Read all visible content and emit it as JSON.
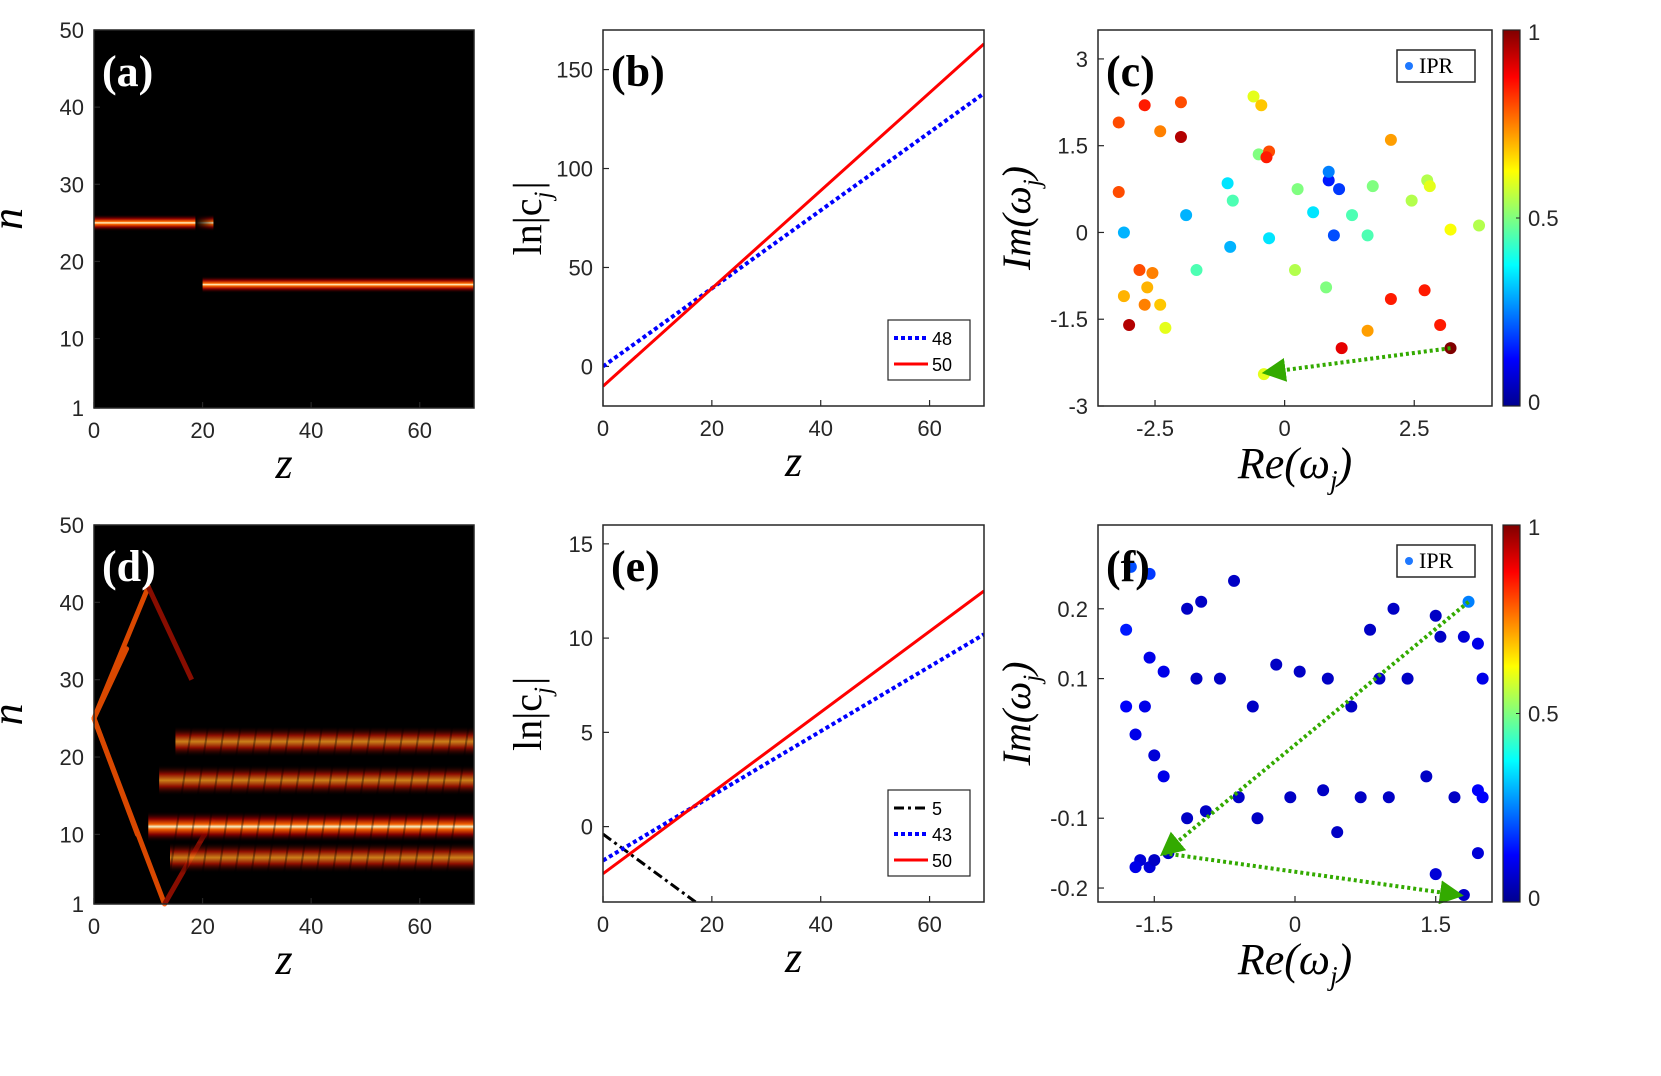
{
  "chart_data": [
    {
      "id": "a",
      "panel_label": "(a)",
      "type": "heatmap",
      "xlabel": "z",
      "ylabel": "n",
      "xlim": [
        0,
        70
      ],
      "ylim": [
        1,
        50
      ],
      "xticks": [
        "0",
        "20",
        "40",
        "60"
      ],
      "yticks": [
        "1",
        "10",
        "20",
        "30",
        "40",
        "50"
      ],
      "colormap": "hot",
      "bands": [
        {
          "n": 25,
          "z_start": 0,
          "z_end": 22
        },
        {
          "n": 17,
          "z_start": 20,
          "z_end": 70
        }
      ]
    },
    {
      "id": "b",
      "panel_label": "(b)",
      "type": "line",
      "xlabel": "z",
      "ylabel": "ln|c_j|",
      "xlim": [
        0,
        70
      ],
      "ylim": [
        -20,
        170
      ],
      "xticks": [
        "0",
        "20",
        "40",
        "60"
      ],
      "yticks": [
        "0",
        "50",
        "100",
        "150"
      ],
      "legend_position": "bottom-right",
      "series": [
        {
          "name": "48",
          "color": "#0000ff",
          "dash": "dotted",
          "x": [
            0,
            70
          ],
          "y": [
            0,
            138
          ]
        },
        {
          "name": "50",
          "color": "#ff0000",
          "dash": "solid",
          "x": [
            0,
            70
          ],
          "y": [
            -10,
            163
          ]
        }
      ]
    },
    {
      "id": "c",
      "panel_label": "(c)",
      "type": "scatter",
      "xlabel": "Re(ω_j)",
      "ylabel": "Im(ω_j)",
      "xlim": [
        -3.6,
        4.0
      ],
      "ylim": [
        -3,
        3.5
      ],
      "xticks": [
        "-2.5",
        "0",
        "2.5"
      ],
      "yticks": [
        "3",
        "1.5",
        "0",
        "-1.5",
        "-3"
      ],
      "legend": "IPR",
      "legend_position": "top-right",
      "colorbar": {
        "min": 0,
        "max": 1,
        "ticks": [
          "0",
          "0.5",
          "1"
        ]
      },
      "points": [
        {
          "x": -3.2,
          "y": 1.9,
          "ipr": 0.8
        },
        {
          "x": -2.7,
          "y": 2.2,
          "ipr": 0.85
        },
        {
          "x": -2.0,
          "y": 2.25,
          "ipr": 0.8
        },
        {
          "x": -2.4,
          "y": 1.75,
          "ipr": 0.75
        },
        {
          "x": -2.0,
          "y": 1.65,
          "ipr": 0.95
        },
        {
          "x": -3.2,
          "y": 0.7,
          "ipr": 0.8
        },
        {
          "x": -0.6,
          "y": 2.35,
          "ipr": 0.6
        },
        {
          "x": -0.45,
          "y": 2.2,
          "ipr": 0.68
        },
        {
          "x": -0.5,
          "y": 1.35,
          "ipr": 0.5
        },
        {
          "x": -0.3,
          "y": 1.4,
          "ipr": 0.8
        },
        {
          "x": -0.35,
          "y": 1.3,
          "ipr": 0.85
        },
        {
          "x": 2.05,
          "y": 1.6,
          "ipr": 0.72
        },
        {
          "x": -1.1,
          "y": 0.85,
          "ipr": 0.35
        },
        {
          "x": -1.0,
          "y": 0.55,
          "ipr": 0.45
        },
        {
          "x": -1.9,
          "y": 0.3,
          "ipr": 0.3
        },
        {
          "x": -3.1,
          "y": 0.0,
          "ipr": 0.3
        },
        {
          "x": -1.05,
          "y": -0.25,
          "ipr": 0.3
        },
        {
          "x": -0.3,
          "y": -0.1,
          "ipr": 0.35
        },
        {
          "x": 0.25,
          "y": 0.75,
          "ipr": 0.5
        },
        {
          "x": 0.55,
          "y": 0.35,
          "ipr": 0.35
        },
        {
          "x": 0.85,
          "y": 0.9,
          "ipr": 0.15
        },
        {
          "x": 0.85,
          "y": 1.05,
          "ipr": 0.25
        },
        {
          "x": 1.05,
          "y": 0.75,
          "ipr": 0.18
        },
        {
          "x": 0.95,
          "y": -0.05,
          "ipr": 0.2
        },
        {
          "x": 1.3,
          "y": 0.3,
          "ipr": 0.45
        },
        {
          "x": 1.6,
          "y": -0.05,
          "ipr": 0.45
        },
        {
          "x": 1.7,
          "y": 0.8,
          "ipr": 0.5
        },
        {
          "x": 2.45,
          "y": 0.55,
          "ipr": 0.55
        },
        {
          "x": 2.75,
          "y": 0.9,
          "ipr": 0.55
        },
        {
          "x": 2.8,
          "y": 0.8,
          "ipr": 0.6
        },
        {
          "x": 3.2,
          "y": 0.05,
          "ipr": 0.62
        },
        {
          "x": 3.75,
          "y": 0.12,
          "ipr": 0.55
        },
        {
          "x": -1.7,
          "y": -0.65,
          "ipr": 0.45
        },
        {
          "x": 0.2,
          "y": -0.65,
          "ipr": 0.55
        },
        {
          "x": 0.8,
          "y": -0.95,
          "ipr": 0.5
        },
        {
          "x": -2.8,
          "y": -0.65,
          "ipr": 0.8
        },
        {
          "x": -2.55,
          "y": -0.7,
          "ipr": 0.75
        },
        {
          "x": -2.65,
          "y": -0.95,
          "ipr": 0.7
        },
        {
          "x": -3.1,
          "y": -1.1,
          "ipr": 0.7
        },
        {
          "x": -2.7,
          "y": -1.25,
          "ipr": 0.75
        },
        {
          "x": -2.4,
          "y": -1.25,
          "ipr": 0.68
        },
        {
          "x": -3.0,
          "y": -1.6,
          "ipr": 0.95
        },
        {
          "x": -2.3,
          "y": -1.65,
          "ipr": 0.6
        },
        {
          "x": 1.1,
          "y": -2.0,
          "ipr": 0.9
        },
        {
          "x": 1.6,
          "y": -1.7,
          "ipr": 0.72
        },
        {
          "x": 2.05,
          "y": -1.15,
          "ipr": 0.85
        },
        {
          "x": 2.7,
          "y": -1.0,
          "ipr": 0.85
        },
        {
          "x": 3.0,
          "y": -1.6,
          "ipr": 0.85
        },
        {
          "x": 3.2,
          "y": -2.0,
          "ipr": 1.0
        },
        {
          "x": -0.4,
          "y": -2.45,
          "ipr": 0.6
        }
      ],
      "arrows": [
        {
          "from": [
            3.2,
            -2.0
          ],
          "to": [
            -0.35,
            -2.42
          ],
          "color": "#33aa00"
        }
      ]
    },
    {
      "id": "d",
      "panel_label": "(d)",
      "type": "heatmap",
      "xlabel": "z",
      "ylabel": "n",
      "xlim": [
        0,
        70
      ],
      "ylim": [
        1,
        50
      ],
      "xticks": [
        "0",
        "20",
        "40",
        "60"
      ],
      "yticks": [
        "1",
        "10",
        "20",
        "30",
        "40",
        "50"
      ],
      "colormap": "hot",
      "bands": [
        {
          "n": 22,
          "z_start": 15,
          "z_end": 70
        },
        {
          "n": 17,
          "z_start": 12,
          "z_end": 70
        },
        {
          "n": 11,
          "z_start": 10,
          "z_end": 70
        },
        {
          "n": 7,
          "z_start": 14,
          "z_end": 70
        }
      ],
      "source_n": 25
    },
    {
      "id": "e",
      "panel_label": "(e)",
      "type": "line",
      "xlabel": "z",
      "ylabel": "ln|c_j|",
      "xlim": [
        0,
        70
      ],
      "ylim": [
        -4,
        16
      ],
      "xticks": [
        "0",
        "20",
        "40",
        "60"
      ],
      "yticks": [
        "0",
        "5",
        "10",
        "15"
      ],
      "legend_position": "bottom-right",
      "series": [
        {
          "name": "5",
          "color": "#000000",
          "dash": "dashdot",
          "x": [
            0,
            17
          ],
          "y": [
            -0.4,
            -4
          ]
        },
        {
          "name": "43",
          "color": "#0000ff",
          "dash": "dotted",
          "x": [
            0,
            70
          ],
          "y": [
            -1.8,
            10.2
          ]
        },
        {
          "name": "50",
          "color": "#ff0000",
          "dash": "solid",
          "x": [
            0,
            70
          ],
          "y": [
            -2.5,
            12.5
          ]
        }
      ]
    },
    {
      "id": "f",
      "panel_label": "(f)",
      "type": "scatter",
      "xlabel": "Re(ω_j)",
      "ylabel": "Im(ω_j)",
      "xlim": [
        -2.1,
        2.1
      ],
      "ylim": [
        -0.22,
        0.32
      ],
      "xticks": [
        "-1.5",
        "0",
        "1.5"
      ],
      "yticks": [
        "0.2",
        "0.1",
        "-0.1",
        "-0.2"
      ],
      "legend": "IPR",
      "legend_position": "top-right",
      "colorbar": {
        "min": 0,
        "max": 1,
        "ticks": [
          "0",
          "0.5",
          "1"
        ]
      },
      "points": [
        {
          "x": -1.75,
          "y": 0.26,
          "ipr": 0.2
        },
        {
          "x": -1.55,
          "y": 0.25,
          "ipr": 0.18
        },
        {
          "x": -1.8,
          "y": 0.17,
          "ipr": 0.15
        },
        {
          "x": -1.15,
          "y": 0.2,
          "ipr": 0.06
        },
        {
          "x": -1.0,
          "y": 0.21,
          "ipr": 0.06
        },
        {
          "x": -0.65,
          "y": 0.24,
          "ipr": 0.06
        },
        {
          "x": -1.55,
          "y": 0.13,
          "ipr": 0.1
        },
        {
          "x": -1.4,
          "y": 0.11,
          "ipr": 0.1
        },
        {
          "x": -1.05,
          "y": 0.1,
          "ipr": 0.06
        },
        {
          "x": -0.8,
          "y": 0.1,
          "ipr": 0.06
        },
        {
          "x": -1.8,
          "y": 0.06,
          "ipr": 0.12
        },
        {
          "x": -1.6,
          "y": 0.06,
          "ipr": 0.1
        },
        {
          "x": -1.7,
          "y": 0.02,
          "ipr": 0.1
        },
        {
          "x": -1.5,
          "y": -0.01,
          "ipr": 0.08
        },
        {
          "x": -1.4,
          "y": -0.04,
          "ipr": 0.1
        },
        {
          "x": -0.45,
          "y": 0.06,
          "ipr": 0.06
        },
        {
          "x": -0.2,
          "y": 0.12,
          "ipr": 0.06
        },
        {
          "x": 0.05,
          "y": 0.11,
          "ipr": 0.06
        },
        {
          "x": 0.35,
          "y": 0.1,
          "ipr": 0.06
        },
        {
          "x": 0.6,
          "y": 0.06,
          "ipr": 0.06
        },
        {
          "x": 0.8,
          "y": 0.17,
          "ipr": 0.06
        },
        {
          "x": 0.9,
          "y": 0.1,
          "ipr": 0.06
        },
        {
          "x": 1.05,
          "y": 0.2,
          "ipr": 0.06
        },
        {
          "x": 1.2,
          "y": 0.1,
          "ipr": 0.06
        },
        {
          "x": 1.5,
          "y": 0.19,
          "ipr": 0.06
        },
        {
          "x": 1.55,
          "y": 0.16,
          "ipr": 0.06
        },
        {
          "x": 1.85,
          "y": 0.21,
          "ipr": 0.25
        },
        {
          "x": 1.8,
          "y": 0.16,
          "ipr": 0.08
        },
        {
          "x": 1.95,
          "y": 0.15,
          "ipr": 0.1
        },
        {
          "x": 2.0,
          "y": 0.1,
          "ipr": 0.1
        },
        {
          "x": -1.15,
          "y": -0.1,
          "ipr": 0.06
        },
        {
          "x": -0.95,
          "y": -0.09,
          "ipr": 0.06
        },
        {
          "x": -0.6,
          "y": -0.07,
          "ipr": 0.06
        },
        {
          "x": -0.4,
          "y": -0.1,
          "ipr": 0.06
        },
        {
          "x": -0.05,
          "y": -0.07,
          "ipr": 0.06
        },
        {
          "x": 0.3,
          "y": -0.06,
          "ipr": 0.06
        },
        {
          "x": 0.45,
          "y": -0.12,
          "ipr": 0.06
        },
        {
          "x": 0.7,
          "y": -0.07,
          "ipr": 0.06
        },
        {
          "x": 1.0,
          "y": -0.07,
          "ipr": 0.06
        },
        {
          "x": 1.4,
          "y": -0.04,
          "ipr": 0.06
        },
        {
          "x": 1.7,
          "y": -0.07,
          "ipr": 0.06
        },
        {
          "x": 1.95,
          "y": -0.06,
          "ipr": 0.12
        },
        {
          "x": 2.0,
          "y": -0.07,
          "ipr": 0.12
        },
        {
          "x": 1.95,
          "y": -0.15,
          "ipr": 0.08
        },
        {
          "x": -1.55,
          "y": -0.17,
          "ipr": 0.08
        },
        {
          "x": -1.65,
          "y": -0.16,
          "ipr": 0.08
        },
        {
          "x": -1.7,
          "y": -0.17,
          "ipr": 0.1
        },
        {
          "x": -1.5,
          "y": -0.16,
          "ipr": 0.06
        },
        {
          "x": -1.35,
          "y": -0.15,
          "ipr": 0.06
        },
        {
          "x": 1.5,
          "y": -0.18,
          "ipr": 0.08
        },
        {
          "x": 1.8,
          "y": -0.21,
          "ipr": 0.06
        }
      ],
      "arrows": [
        {
          "from": [
            1.85,
            0.21
          ],
          "to": [
            -1.4,
            -0.15
          ],
          "color": "#33aa00"
        },
        {
          "from": [
            -1.4,
            -0.15
          ],
          "to": [
            1.75,
            -0.21
          ],
          "color": "#33aa00"
        }
      ]
    }
  ]
}
